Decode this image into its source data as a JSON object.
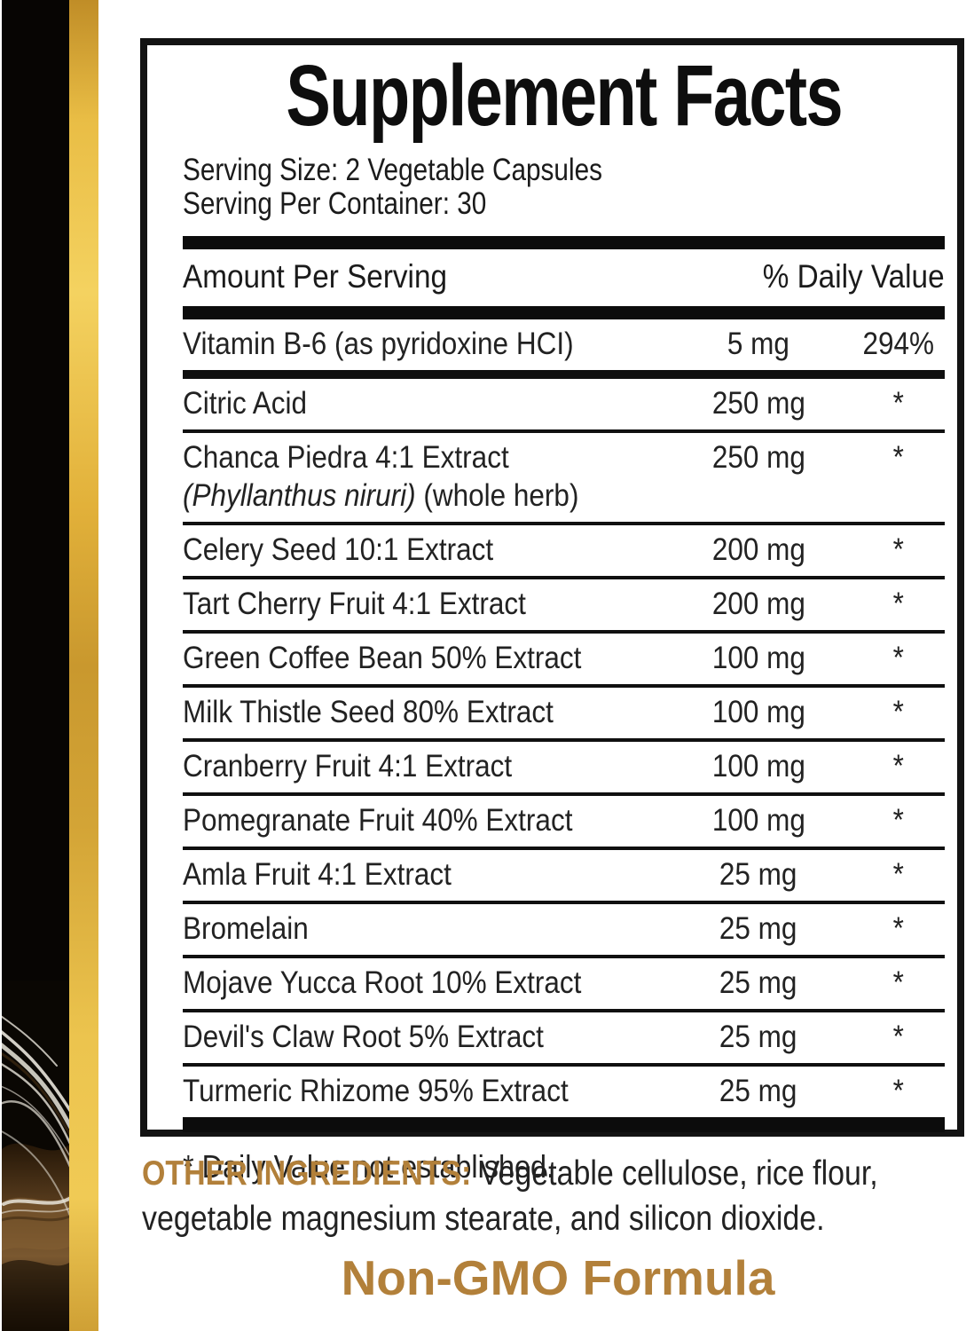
{
  "panel": {
    "title": "Supplement Facts",
    "serving_size": "Serving Size: 2 Vegetable Capsules",
    "servings_per_container": "Serving Per Container: 30",
    "header": {
      "amount_label": "Amount Per Serving",
      "daily_value_label": "% Daily Value"
    },
    "rows": [
      {
        "name": "Vitamin B-6 (as pyridoxine HCI)",
        "amount": "5 mg",
        "dv": "294%"
      },
      {
        "name": "Citric Acid",
        "amount": "250 mg",
        "dv": "*"
      },
      {
        "name": "Chanca Piedra 4:1 Extract",
        "sub_italic": "(Phyllanthus niruri)",
        "sub_rest": " (whole herb)",
        "amount": "250 mg",
        "dv": "*"
      },
      {
        "name": "Celery Seed 10:1 Extract",
        "amount": "200 mg",
        "dv": "*"
      },
      {
        "name": "Tart Cherry Fruit 4:1 Extract",
        "amount": "200 mg",
        "dv": "*"
      },
      {
        "name": "Green Coffee Bean 50% Extract",
        "amount": "100 mg",
        "dv": "*"
      },
      {
        "name": "Milk Thistle Seed 80% Extract",
        "amount": "100 mg",
        "dv": "*"
      },
      {
        "name": "Cranberry Fruit 4:1 Extract",
        "amount": "100 mg",
        "dv": "*"
      },
      {
        "name": "Pomegranate Fruit 40% Extract",
        "amount": "100 mg",
        "dv": "*"
      },
      {
        "name": "Amla Fruit 4:1 Extract",
        "amount": "25 mg",
        "dv": "*"
      },
      {
        "name": "Bromelain",
        "amount": "25 mg",
        "dv": "*"
      },
      {
        "name": "Mojave Yucca Root 10% Extract",
        "amount": "25 mg",
        "dv": "*"
      },
      {
        "name": "Devil's Claw Root 5% Extract",
        "amount": "25 mg",
        "dv": "*"
      },
      {
        "name": "Turmeric Rhizome 95% Extract",
        "amount": "25 mg",
        "dv": "*"
      }
    ],
    "footnote": "* Daily Value not established."
  },
  "other_ingredients": {
    "label": "OTHER INGREDIENTS:",
    "line1_rest": " Vegetable cellulose, rice flour,",
    "line2": "vegetable magnesium stearate, and silicon dioxide."
  },
  "non_gmo": "Non-GMO Formula",
  "colors": {
    "accent_gold_text": "#b2803a",
    "strip_gold_dark": "#c08d27",
    "strip_gold_bright": "#f4d260",
    "strip_black": "#070503",
    "panel_border": "#131313",
    "rule_black": "#0c0c0c"
  }
}
